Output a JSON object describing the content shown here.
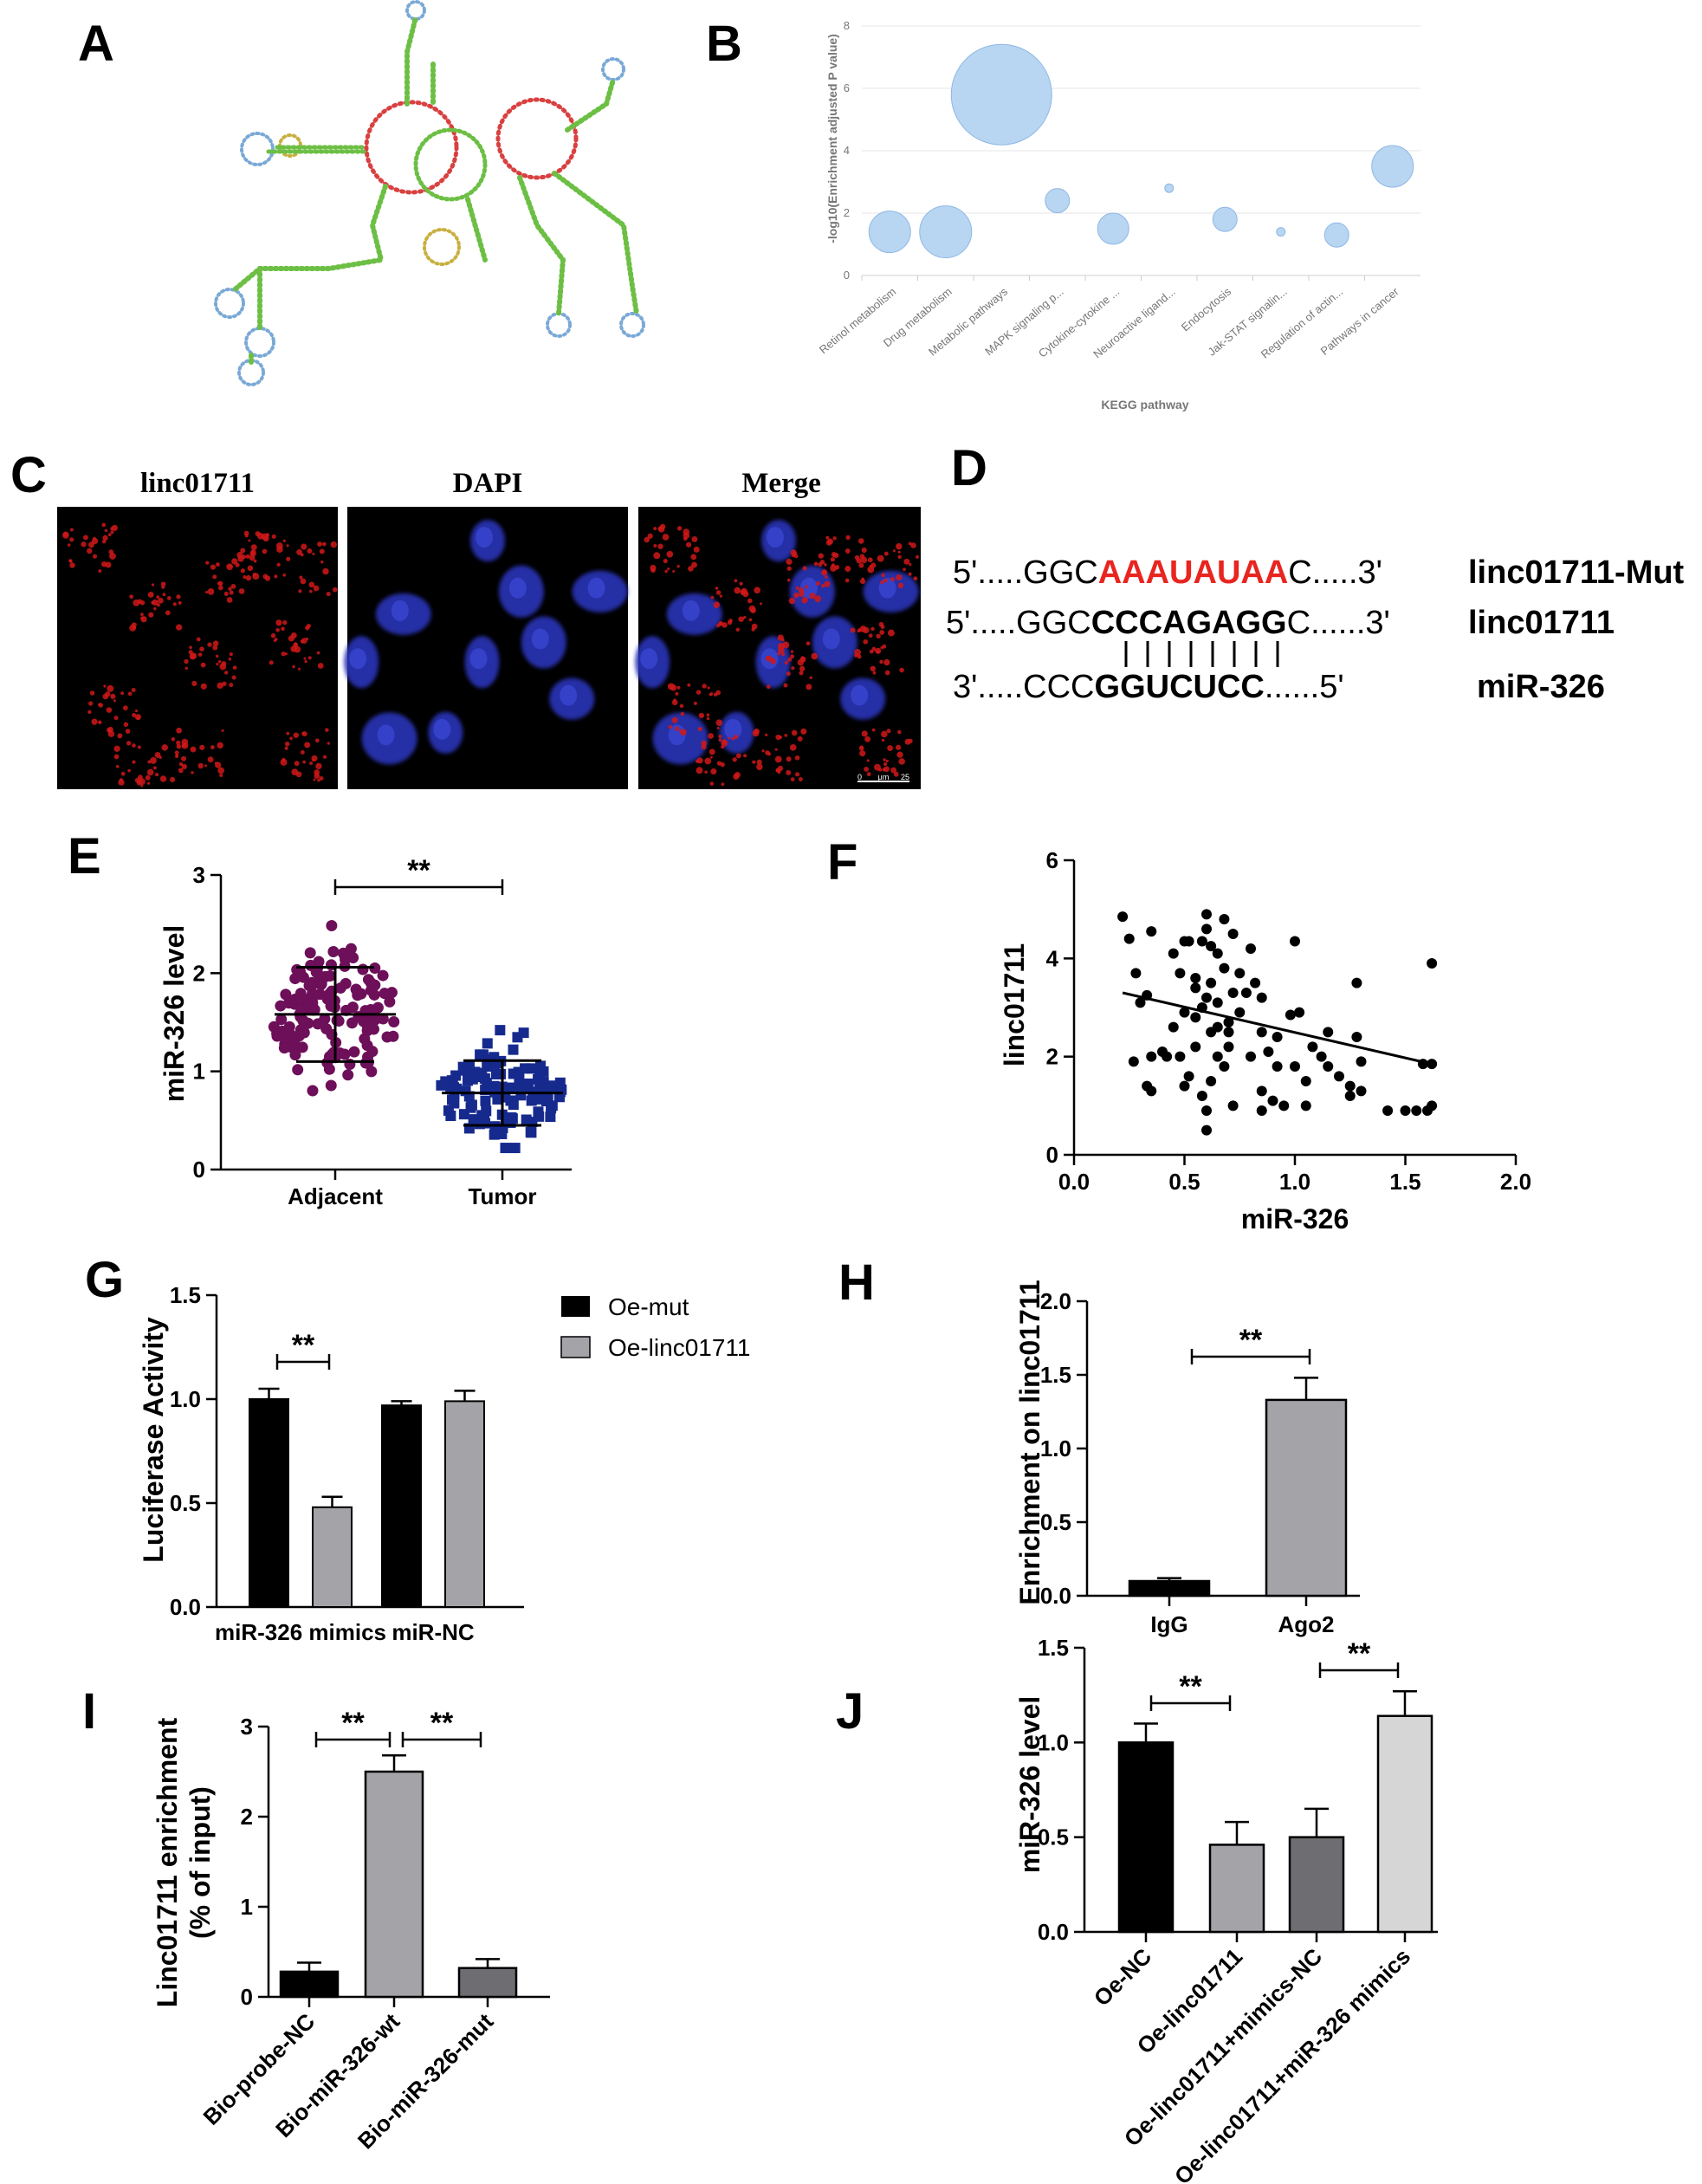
{
  "panels": {
    "A": {
      "letter": "A"
    },
    "B": {
      "letter": "B",
      "chart_data": {
        "type": "scatter",
        "xlabel": "KEGG pathway",
        "ylabel": "-log10(Enrichment adjusted P value)",
        "ylim": [
          0,
          8
        ],
        "yticks": [
          "0",
          "2",
          "4",
          "6",
          "8"
        ],
        "categories": [
          "Retinol metabolism",
          "Drug metabolism",
          "Metabolic pathways",
          "MAPK signaling p...",
          "Cytokine-cytokine ...",
          "Neuroactive ligand...",
          "Endocytosis",
          "Jak-STAT signalin...",
          "Regulation of actin...",
          "Pathways in cancer"
        ],
        "values": [
          1.4,
          1.4,
          5.8,
          2.4,
          1.5,
          2.8,
          1.8,
          1.4,
          1.3,
          3.5
        ],
        "sizes": [
          24,
          30,
          58,
          14,
          18,
          5,
          14,
          5,
          14,
          24
        ],
        "bubble_color": "#b8d5f2"
      }
    },
    "C": {
      "letter": "C",
      "labels": [
        "linc01711",
        "DAPI",
        "Merge"
      ],
      "scalebar": [
        "0",
        "μm",
        "25"
      ]
    },
    "D": {
      "letter": "D",
      "mut_prefix": "5'.....GGC",
      "mut_site": "AAAUAUAA",
      "mut_suffix": "C.....3'",
      "mut_label": "linc01711-Mut",
      "wt_prefix": "5'.....GGC",
      "wt_site": "CCCAGAGG",
      "wt_suffix": "C......3'",
      "wt_label": "linc01711",
      "mir_prefix": "3'.....CCC",
      "mir_site": "GGUCUCC",
      "mir_suffix": "......5'",
      "mir_label": "miR-326",
      "mut_color": "#e8251f"
    },
    "E": {
      "letter": "E",
      "chart_data": {
        "type": "scatter",
        "categories": [
          "Adjacent",
          "Tumor"
        ],
        "ylabel": "miR-326 level",
        "ylim": [
          0,
          3
        ],
        "yticks": [
          "0",
          "1",
          "2",
          "3"
        ],
        "means": [
          1.58,
          0.78
        ],
        "sd": [
          0.48,
          0.33
        ],
        "n": [
          140,
          120
        ],
        "range": [
          [
            0.25,
            2.75
          ],
          [
            0.22,
            1.65
          ]
        ],
        "colors": [
          "#6d0f59",
          "#162a8e"
        ],
        "significance": "**"
      }
    },
    "F": {
      "letter": "F",
      "chart_data": {
        "type": "scatter",
        "xlabel": "miR-326",
        "ylabel": "linc01711",
        "xlim": [
          0,
          2
        ],
        "ylim": [
          0,
          6
        ],
        "xticks": [
          "0.0",
          "0.5",
          "1.0",
          "1.5",
          "2.0"
        ],
        "yticks": [
          "0",
          "2",
          "4",
          "6"
        ],
        "fit": [
          [
            0.22,
            3.3
          ],
          [
            1.62,
            1.85
          ]
        ],
        "points": [
          [
            0.22,
            4.85
          ],
          [
            0.25,
            4.4
          ],
          [
            0.28,
            3.7
          ],
          [
            0.3,
            3.1
          ],
          [
            0.33,
            3.25
          ],
          [
            0.35,
            4.55
          ],
          [
            0.27,
            1.9
          ],
          [
            0.33,
            1.4
          ],
          [
            0.35,
            1.3
          ],
          [
            0.42,
            2.0
          ],
          [
            0.35,
            2.0
          ],
          [
            0.45,
            4.1
          ],
          [
            0.48,
            3.7
          ],
          [
            0.5,
            2.9
          ],
          [
            0.5,
            4.35
          ],
          [
            0.52,
            4.35
          ],
          [
            0.55,
            3.6
          ],
          [
            0.55,
            2.8
          ],
          [
            0.58,
            4.35
          ],
          [
            0.6,
            4.9
          ],
          [
            0.6,
            4.6
          ],
          [
            0.62,
            4.25
          ],
          [
            0.62,
            3.5
          ],
          [
            0.65,
            4.1
          ],
          [
            0.65,
            2.6
          ],
          [
            0.68,
            4.8
          ],
          [
            0.68,
            3.8
          ],
          [
            0.7,
            2.5
          ],
          [
            0.72,
            4.5
          ],
          [
            0.72,
            3.3
          ],
          [
            0.48,
            2.0
          ],
          [
            0.5,
            1.4
          ],
          [
            0.52,
            1.6
          ],
          [
            0.55,
            2.2
          ],
          [
            0.58,
            1.2
          ],
          [
            0.6,
            0.9
          ],
          [
            0.6,
            0.5
          ],
          [
            0.62,
            1.5
          ],
          [
            0.65,
            2.0
          ],
          [
            0.68,
            1.8
          ],
          [
            0.55,
            3.4
          ],
          [
            0.58,
            3.0
          ],
          [
            0.62,
            2.5
          ],
          [
            0.7,
            2.2
          ],
          [
            0.72,
            1.0
          ],
          [
            0.75,
            2.9
          ],
          [
            0.78,
            3.3
          ],
          [
            0.8,
            2.0
          ],
          [
            0.82,
            3.5
          ],
          [
            0.85,
            2.5
          ],
          [
            0.85,
            1.3
          ],
          [
            0.85,
            0.9
          ],
          [
            0.88,
            2.1
          ],
          [
            0.9,
            1.1
          ],
          [
            0.92,
            1.8
          ],
          [
            0.95,
            1.0
          ],
          [
            0.98,
            2.85
          ],
          [
            1.0,
            4.35
          ],
          [
            1.0,
            1.8
          ],
          [
            1.02,
            2.9
          ],
          [
            1.05,
            1.5
          ],
          [
            1.05,
            1.0
          ],
          [
            1.12,
            2.0
          ],
          [
            1.15,
            2.5
          ],
          [
            1.15,
            1.8
          ],
          [
            1.2,
            1.6
          ],
          [
            1.25,
            1.4
          ],
          [
            1.25,
            1.2
          ],
          [
            1.28,
            3.5
          ],
          [
            1.28,
            2.4
          ],
          [
            1.3,
            1.9
          ],
          [
            1.3,
            1.3
          ],
          [
            1.42,
            0.9
          ],
          [
            1.5,
            0.9
          ],
          [
            1.55,
            0.9
          ],
          [
            1.58,
            1.85
          ],
          [
            1.6,
            0.9
          ],
          [
            1.62,
            1.0
          ],
          [
            1.62,
            1.85
          ],
          [
            1.62,
            3.9
          ],
          [
            0.8,
            4.2
          ],
          [
            0.75,
            3.7
          ],
          [
            0.4,
            2.1
          ],
          [
            0.65,
            3.1
          ],
          [
            0.7,
            2.7
          ],
          [
            0.85,
            3.2
          ],
          [
            0.92,
            2.4
          ],
          [
            1.08,
            2.2
          ],
          [
            0.45,
            2.6
          ],
          [
            0.6,
            3.2
          ]
        ]
      }
    },
    "G": {
      "letter": "G",
      "chart_data": {
        "type": "bar",
        "categories": [
          "miR-326 mimics",
          "miR-NC"
        ],
        "series": [
          {
            "name": "Oe-mut",
            "values": [
              1.0,
              0.97
            ],
            "err": [
              0.05,
              0.02
            ],
            "color": "#000000"
          },
          {
            "name": "Oe-linc01711",
            "values": [
              0.48,
              0.99
            ],
            "err": [
              0.05,
              0.05
            ],
            "color": "#a3a3a8"
          }
        ],
        "ylabel": "Luciferase Activity",
        "ylim": [
          0,
          1.5
        ],
        "yticks": [
          "0.0",
          "0.5",
          "1.0",
          "1.5"
        ],
        "significance": "**"
      }
    },
    "H": {
      "letter": "H",
      "chart_data": {
        "type": "bar",
        "categories": [
          "IgG",
          "Ago2"
        ],
        "values": [
          0.1,
          1.33
        ],
        "err": [
          0.02,
          0.15
        ],
        "colors": [
          "#000000",
          "#a3a3a8"
        ],
        "ylabel": "Enrichment on linc01711",
        "ylim": [
          0,
          2
        ],
        "yticks": [
          "0.0",
          "0.5",
          "1.0",
          "1.5",
          "2.0"
        ],
        "significance": "**"
      }
    },
    "I": {
      "letter": "I",
      "chart_data": {
        "type": "bar",
        "categories": [
          "Bio-probe-NC",
          "Bio-miR-326-wt",
          "Bio-miR-326-mut"
        ],
        "values": [
          0.28,
          2.5,
          0.32
        ],
        "err": [
          0.1,
          0.18,
          0.1
        ],
        "colors": [
          "#000000",
          "#a3a3a8",
          "#6e6e72"
        ],
        "ylabel_line1": "Linc01711 enrichment",
        "ylabel_line2": "(% of input)",
        "ylim": [
          0,
          3
        ],
        "yticks": [
          "0",
          "1",
          "2",
          "3"
        ],
        "significance": [
          "**",
          "**"
        ]
      }
    },
    "J": {
      "letter": "J",
      "chart_data": {
        "type": "bar",
        "categories": [
          "Oe-NC",
          "Oe-linc01711",
          "Oe-linc01711+mimics-NC",
          "Oe-linc01711+miR-326 mimics"
        ],
        "values": [
          1.0,
          0.46,
          0.5,
          1.14
        ],
        "err": [
          0.1,
          0.12,
          0.15,
          0.13
        ],
        "colors": [
          "#000000",
          "#a3a3a8",
          "#6e6e72",
          "#d6d6d6"
        ],
        "ylabel": "miR-326 level",
        "ylim": [
          0,
          1.5
        ],
        "yticks": [
          "0.0",
          "0.5",
          "1.0",
          "1.5"
        ],
        "significance": [
          "**",
          "**"
        ]
      }
    }
  }
}
